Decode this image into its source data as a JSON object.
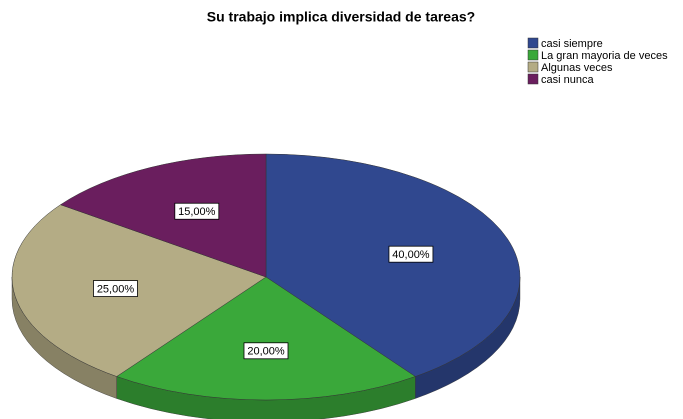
{
  "chart_data": {
    "type": "pie",
    "title": "Su trabajo implica diversidad de tareas?",
    "categories": [
      "casi siempre",
      "La gran mayoria de veces",
      "Algunas veces",
      "casi nunca"
    ],
    "values": [
      40,
      20,
      25,
      15
    ],
    "value_labels": [
      "40,00%",
      "20,00%",
      "25,00%",
      "15,00%"
    ],
    "colors": [
      "#30488f",
      "#3aa83a",
      "#b4ac85",
      "#6a1e5e"
    ],
    "legend": "top-right"
  }
}
